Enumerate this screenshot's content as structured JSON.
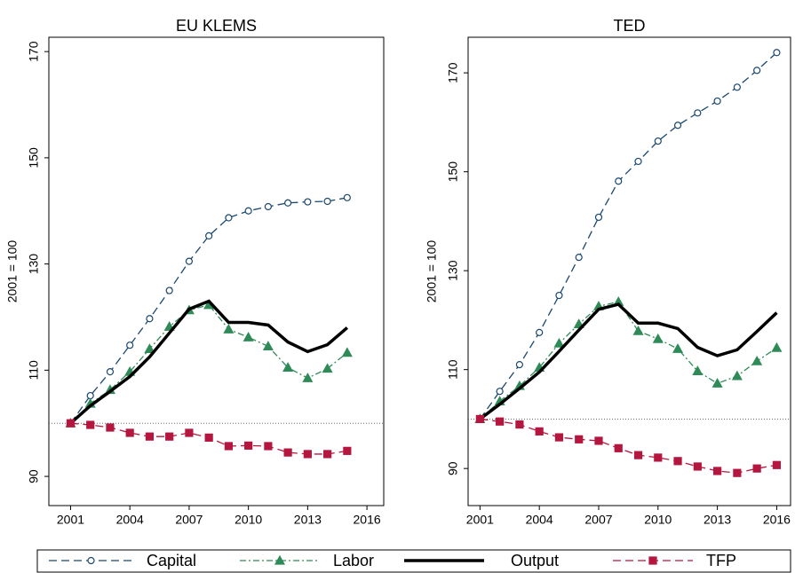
{
  "chart_data": [
    {
      "type": "line",
      "title": "EU KLEMS",
      "y_label": "2001 = 100",
      "x": [
        2001,
        2002,
        2003,
        2004,
        2005,
        2006,
        2007,
        2008,
        2009,
        2010,
        2011,
        2012,
        2013,
        2014,
        2015
      ],
      "xlim": [
        1999.9,
        2016.85
      ],
      "xticks": [
        2001,
        2004,
        2007,
        2010,
        2013,
        2016
      ],
      "ylim": [
        84.5,
        172.7
      ],
      "yticks": [
        90,
        110,
        130,
        150,
        170
      ],
      "hline": 100,
      "series": [
        {
          "name": "Capital",
          "color": "#1a476f",
          "dash": "9 5",
          "width": 1.3,
          "marker": "circle",
          "values": [
            100,
            105.2,
            109.7,
            114.7,
            119.7,
            125,
            130.5,
            135.3,
            138.7,
            140,
            140.8,
            141.5,
            141.7,
            141.8,
            142.5
          ]
        },
        {
          "name": "Labor",
          "color": "#2e8b57",
          "dash": "7 3 2 3",
          "width": 1.3,
          "marker": "triangle",
          "values": [
            100,
            103.7,
            106.3,
            109.7,
            114,
            118.2,
            121.3,
            122.3,
            117.7,
            116.2,
            114.5,
            110.5,
            108.5,
            110.3,
            113.3
          ]
        },
        {
          "name": "Output",
          "color": "#000000",
          "dash": "none",
          "width": 3.5,
          "marker": "none",
          "values": [
            100,
            103.3,
            106,
            108.8,
            112.5,
            117,
            121.5,
            123,
            119,
            119,
            118.5,
            115.3,
            113.5,
            114.8,
            118
          ]
        },
        {
          "name": "TFP",
          "color": "#b5163f",
          "dash": "9 5",
          "width": 1.3,
          "marker": "square",
          "values": [
            100,
            99.7,
            99.2,
            98.2,
            97.5,
            97.5,
            98.2,
            97.3,
            95.7,
            95.8,
            95.7,
            94.5,
            94.2,
            94.2,
            94.8
          ]
        }
      ]
    },
    {
      "type": "line",
      "title": "TED",
      "y_label": "2001 = 100",
      "x": [
        2001,
        2002,
        2003,
        2004,
        2005,
        2006,
        2007,
        2008,
        2009,
        2010,
        2011,
        2012,
        2013,
        2014,
        2015,
        2016
      ],
      "xlim": [
        2000.4,
        2016.7
      ],
      "xticks": [
        2001,
        2004,
        2007,
        2010,
        2013,
        2016
      ],
      "ylim": [
        82.5,
        177.2
      ],
      "yticks": [
        90,
        110,
        130,
        150,
        170
      ],
      "hline": 100,
      "series": [
        {
          "color": "#1a476f",
          "dash": "9 5",
          "width": 1.3,
          "marker": "circle",
          "values": [
            100,
            105.6,
            111,
            117.5,
            125,
            132.7,
            140.8,
            148.1,
            152.1,
            156.2,
            159.4,
            161.9,
            164.3,
            167.1,
            170.5,
            174.1
          ]
        },
        {
          "color": "#2e8b57",
          "dash": "7 3 2 3",
          "width": 1.3,
          "marker": "triangle",
          "values": [
            100,
            103.6,
            106.7,
            110.4,
            115.3,
            119.2,
            122.8,
            123.7,
            117.8,
            116.2,
            114.2,
            109.7,
            107.2,
            108.7,
            111.7,
            114.4
          ]
        },
        {
          "color": "#000000",
          "dash": "none",
          "width": 3.5,
          "marker": "none",
          "values": [
            100,
            103,
            106.2,
            109.5,
            113.7,
            118,
            122.2,
            123.2,
            119.4,
            119.4,
            118.3,
            114.5,
            112.8,
            114,
            117.7,
            121.5
          ]
        },
        {
          "color": "#b5163f",
          "dash": "9 5",
          "width": 1.3,
          "marker": "square",
          "values": [
            100,
            99.5,
            98.9,
            97.5,
            96.3,
            95.9,
            95.6,
            94.1,
            92.7,
            92.2,
            91.5,
            90.4,
            89.5,
            89.1,
            90,
            90.7
          ]
        }
      ]
    }
  ]
}
